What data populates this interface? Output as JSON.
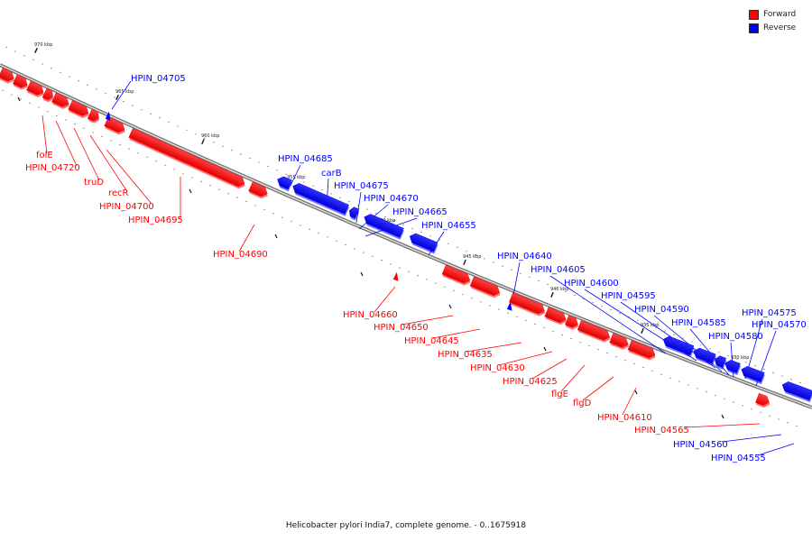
{
  "legend": {
    "forward": {
      "label": "Forward",
      "color": "#ff0000"
    },
    "reverse": {
      "label": "Reverse",
      "color": "#0000ff"
    }
  },
  "caption": "Helicobacter pylori India7, complete genome. - 0..1675918",
  "ticks": [
    "970 kbp",
    "965 kbp",
    "960 kbp",
    "955 kbp",
    "950 kbp",
    "945 kbp",
    "940 kbp",
    "935 kbp",
    "930 kbp"
  ],
  "genes": [
    {
      "label": "folE",
      "strand": "forward"
    },
    {
      "label": "HPIN_04720",
      "strand": "forward"
    },
    {
      "label": "truD",
      "strand": "forward"
    },
    {
      "label": "recR",
      "strand": "forward"
    },
    {
      "label": "HPIN_04700",
      "strand": "forward"
    },
    {
      "label": "HPIN_04695",
      "strand": "forward"
    },
    {
      "label": "HPIN_04690",
      "strand": "forward"
    },
    {
      "label": "HPIN_04705",
      "strand": "reverse"
    },
    {
      "label": "HPIN_04685",
      "strand": "reverse"
    },
    {
      "label": "carB",
      "strand": "reverse"
    },
    {
      "label": "HPIN_04675",
      "strand": "reverse"
    },
    {
      "label": "HPIN_04670",
      "strand": "reverse"
    },
    {
      "label": "HPIN_04665",
      "strand": "reverse"
    },
    {
      "label": "HPIN_04655",
      "strand": "reverse"
    },
    {
      "label": "HPIN_04660",
      "strand": "forward"
    },
    {
      "label": "HPIN_04650",
      "strand": "forward"
    },
    {
      "label": "HPIN_04645",
      "strand": "forward"
    },
    {
      "label": "HPIN_04635",
      "strand": "forward"
    },
    {
      "label": "HPIN_04630",
      "strand": "forward"
    },
    {
      "label": "HPIN_04625",
      "strand": "forward"
    },
    {
      "label": "flgE",
      "strand": "forward"
    },
    {
      "label": "flgD",
      "strand": "forward"
    },
    {
      "label": "HPIN_04610",
      "strand": "forward"
    },
    {
      "label": "HPIN_04565",
      "strand": "forward"
    },
    {
      "label": "HPIN_04640",
      "strand": "reverse"
    },
    {
      "label": "HPIN_04605",
      "strand": "reverse"
    },
    {
      "label": "HPIN_04600",
      "strand": "reverse"
    },
    {
      "label": "HPIN_04595",
      "strand": "reverse"
    },
    {
      "label": "HPIN_04590",
      "strand": "reverse"
    },
    {
      "label": "HPIN_04585",
      "strand": "reverse"
    },
    {
      "label": "HPIN_04580",
      "strand": "reverse"
    },
    {
      "label": "HPIN_04575",
      "strand": "reverse"
    },
    {
      "label": "HPIN_04570",
      "strand": "reverse"
    },
    {
      "label": "HPIN_04560",
      "strand": "reverse"
    },
    {
      "label": "HPIN_04555",
      "strand": "reverse"
    }
  ]
}
